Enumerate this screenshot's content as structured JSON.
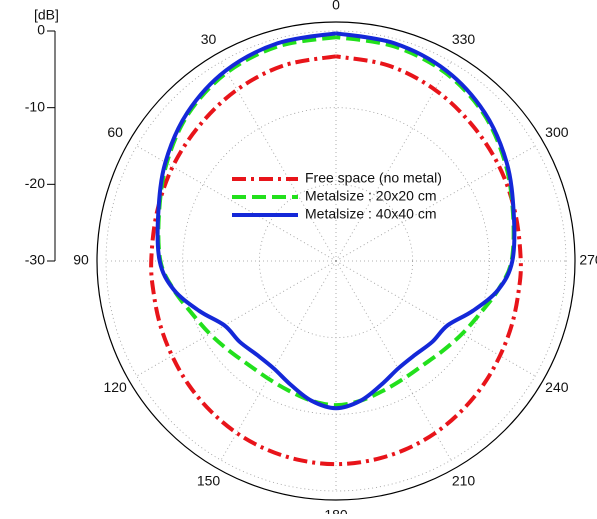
{
  "chart_data": {
    "type": "polar",
    "rlabel": "[dB]",
    "theta_direction": "counterclockwise",
    "theta_zero": "top",
    "rlim": [
      -30,
      0
    ],
    "rticks": [
      0,
      -10,
      -20,
      -30
    ],
    "thetaticks": [
      0,
      30,
      60,
      90,
      120,
      150,
      180,
      210,
      240,
      270,
      300,
      330
    ],
    "grid": true,
    "legend": "center",
    "theta": [
      0,
      15,
      30,
      45,
      60,
      75,
      90,
      100,
      110,
      120,
      130,
      140,
      150,
      160,
      170,
      180,
      190,
      200,
      210,
      220,
      230,
      240,
      250,
      260,
      270,
      285,
      300,
      315,
      330,
      345,
      360
    ],
    "series": [
      {
        "name": "Free space (no metal)",
        "color": "#e8141a",
        "dash": "dashdot",
        "values": [
          -3.3,
          -3.6,
          -4.2,
          -4.9,
          -5.4,
          -5.8,
          -5.9,
          -5.85,
          -5.6,
          -5.3,
          -4.9,
          -4.5,
          -4.1,
          -3.8,
          -3.6,
          -3.5,
          -3.6,
          -3.8,
          -4.1,
          -4.5,
          -4.9,
          -5.3,
          -5.6,
          -5.85,
          -5.9,
          -5.8,
          -5.4,
          -4.9,
          -4.2,
          -3.6,
          -3.3
        ]
      },
      {
        "name": "Metalsize : 20x20 cm",
        "color": "#22e01c",
        "dash": "dashed",
        "values": [
          -0.8,
          -1,
          -1.6,
          -2.8,
          -4.5,
          -6.1,
          -7.1,
          -8.5,
          -10,
          -11,
          -11.8,
          -12.3,
          -12.3,
          -12,
          -11.5,
          -11.2,
          -11.5,
          -12,
          -12.3,
          -12.3,
          -11.8,
          -11,
          -10,
          -8.5,
          -7.1,
          -6.1,
          -4.5,
          -2.8,
          -1.6,
          -1,
          -0.8
        ]
      },
      {
        "name": "Metalsize : 40x40 cm",
        "color": "#1428d8",
        "dash": "solid",
        "values": [
          -0.3,
          -0.6,
          -1.3,
          -2.6,
          -4.3,
          -6,
          -7,
          -8.5,
          -11,
          -13.2,
          -13.6,
          -14,
          -13.8,
          -12.8,
          -11.5,
          -10.8,
          -11.5,
          -12.8,
          -13.8,
          -14,
          -13.6,
          -13.2,
          -11,
          -8.5,
          -7,
          -6,
          -4.3,
          -2.6,
          -1.3,
          -0.6,
          -0.3
        ]
      }
    ]
  }
}
